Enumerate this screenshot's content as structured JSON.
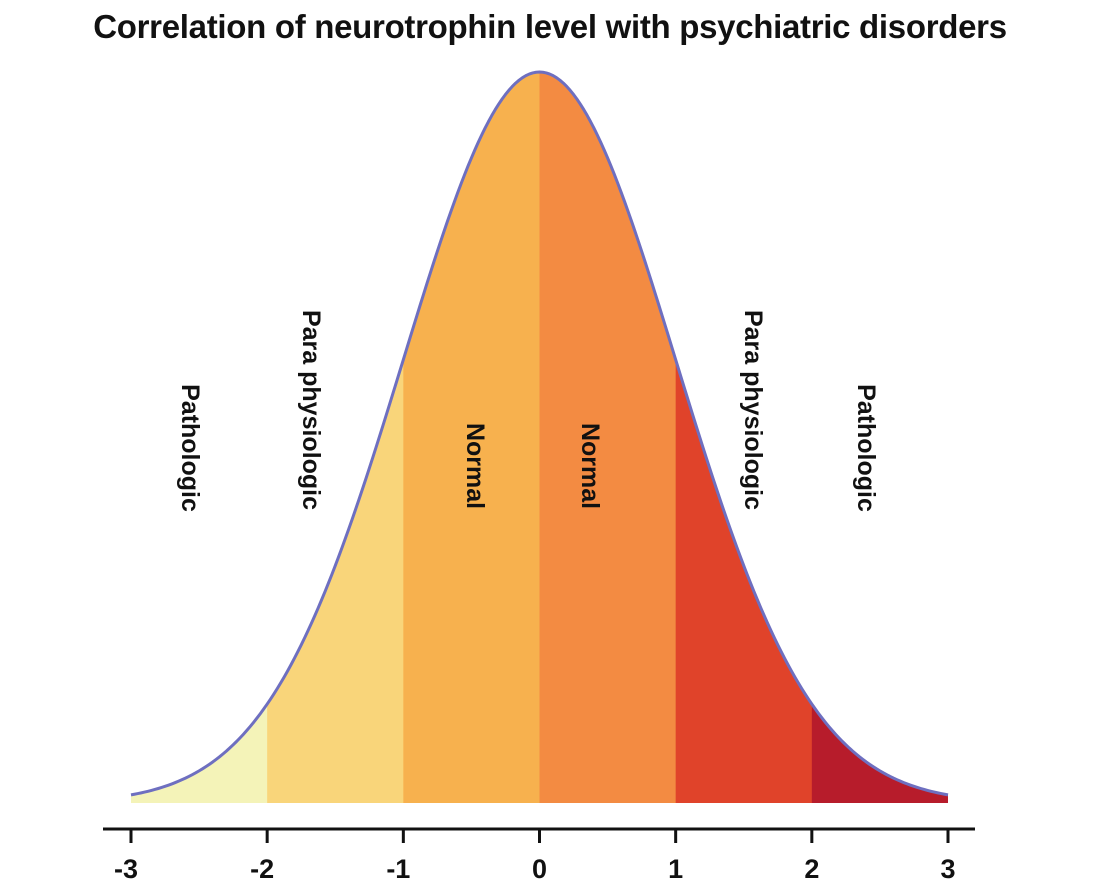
{
  "chart_data": {
    "type": "area",
    "title": "Correlation of neurotrophin level  with psychiatric disorders",
    "xlabel": "",
    "ylabel": "",
    "xlim": [
      -3,
      3
    ],
    "xticks": [
      "-3",
      "-2",
      "-1",
      "0",
      "1",
      "2",
      "3"
    ],
    "distribution": "normal",
    "mean": 0,
    "sd": 1,
    "regions": [
      {
        "from": -3,
        "to": -2,
        "label": "Pathologic",
        "color": "#f4f3b8"
      },
      {
        "from": -2,
        "to": -1,
        "label": "Para physiologic",
        "color": "#f9d57a"
      },
      {
        "from": -1,
        "to": 0,
        "label": "Normal",
        "color": "#f7b14e"
      },
      {
        "from": 0,
        "to": 1,
        "label": "Normal",
        "color": "#f38b42"
      },
      {
        "from": 1,
        "to": 2,
        "label": "Para physiologic",
        "color": "#e0432a"
      },
      {
        "from": 2,
        "to": 3,
        "label": "Pathologic",
        "color": "#b71c2b"
      }
    ],
    "curve_color": "#6e6fc0",
    "axis_color": "#111111",
    "grid": false
  }
}
